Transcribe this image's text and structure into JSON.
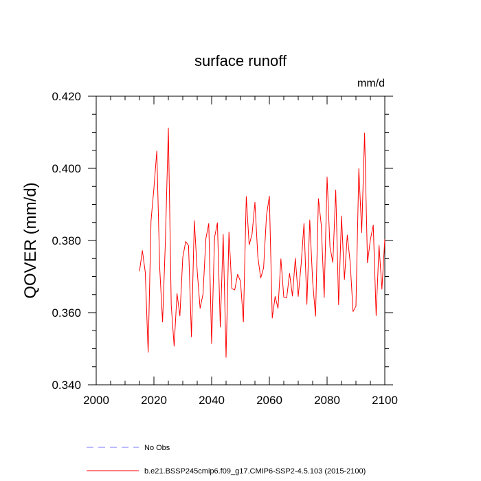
{
  "chart_data": {
    "type": "line",
    "title": "surface runoff",
    "units": "mm/d",
    "ylabel": "QOVER  (mm/d)",
    "xlabel": "",
    "xlim": [
      2000,
      2100
    ],
    "ylim": [
      0.34,
      0.42
    ],
    "x_ticks": [
      2000,
      2020,
      2040,
      2060,
      2080,
      2100
    ],
    "y_ticks": [
      0.34,
      0.36,
      0.38,
      0.4,
      0.42
    ],
    "y_tick_labels": [
      "0.340",
      "0.360",
      "0.380",
      "0.400",
      "0.420"
    ],
    "series": [
      {
        "name": "b.e21.BSSP245cmip6.f09_g17.CMIP6-SSP2-4.5.103 (2015-2100)",
        "color": "#ff0000",
        "x": [
          2015,
          2016,
          2017,
          2018,
          2019,
          2020,
          2021,
          2022,
          2023,
          2024,
          2025,
          2026,
          2027,
          2028,
          2029,
          2030,
          2031,
          2032,
          2033,
          2034,
          2035,
          2036,
          2037,
          2038,
          2039,
          2040,
          2041,
          2042,
          2043,
          2044,
          2045,
          2046,
          2047,
          2048,
          2049,
          2050,
          2051,
          2052,
          2053,
          2054,
          2055,
          2056,
          2057,
          2058,
          2059,
          2060,
          2061,
          2062,
          2063,
          2064,
          2065,
          2066,
          2067,
          2068,
          2069,
          2070,
          2071,
          2072,
          2073,
          2074,
          2075,
          2076,
          2077,
          2078,
          2079,
          2080,
          2081,
          2082,
          2083,
          2084,
          2085,
          2086,
          2087,
          2088,
          2089,
          2090,
          2091,
          2092,
          2093,
          2094,
          2095,
          2096,
          2097,
          2098,
          2099,
          2100
        ],
        "values": [
          0.3715,
          0.3772,
          0.3712,
          0.349,
          0.3855,
          0.3945,
          0.4048,
          0.3725,
          0.3574,
          0.3805,
          0.4112,
          0.3621,
          0.3507,
          0.3653,
          0.3591,
          0.3753,
          0.3797,
          0.3786,
          0.3533,
          0.3855,
          0.3715,
          0.3612,
          0.3651,
          0.3805,
          0.3847,
          0.3514,
          0.3808,
          0.3849,
          0.356,
          0.3817,
          0.3476,
          0.3823,
          0.3667,
          0.3663,
          0.3706,
          0.3687,
          0.3574,
          0.3922,
          0.3788,
          0.3817,
          0.3906,
          0.3755,
          0.3696,
          0.3724,
          0.3869,
          0.3923,
          0.3585,
          0.3645,
          0.3612,
          0.3749,
          0.3643,
          0.3641,
          0.3709,
          0.3646,
          0.3751,
          0.3645,
          0.3733,
          0.3847,
          0.3623,
          0.3857,
          0.3686,
          0.359,
          0.3916,
          0.3842,
          0.3642,
          0.3976,
          0.3782,
          0.3739,
          0.394,
          0.3622,
          0.3868,
          0.3692,
          0.3815,
          0.3739,
          0.3603,
          0.3618,
          0.3999,
          0.3822,
          0.4098,
          0.3738,
          0.3802,
          0.3843,
          0.3592,
          0.3787,
          0.3665,
          0.3803
        ]
      },
      {
        "name": "No Obs",
        "color": "#7777ff",
        "values": []
      }
    ],
    "legend_position": "bottom-left",
    "grid": false
  }
}
